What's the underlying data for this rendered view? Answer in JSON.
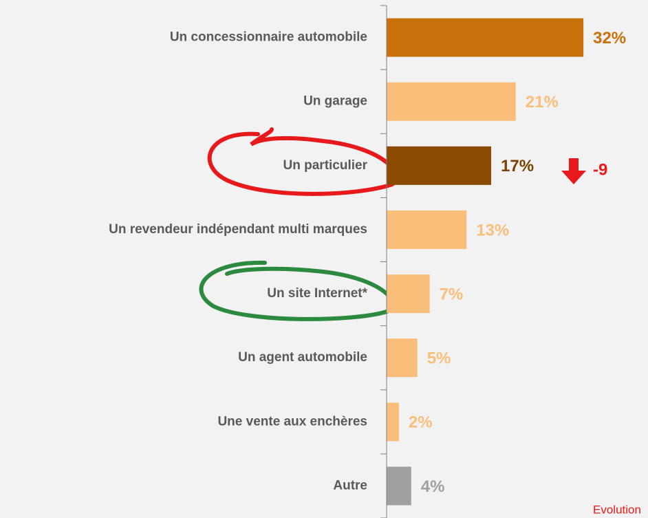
{
  "chart_data": {
    "type": "bar",
    "orientation": "horizontal",
    "categories": [
      "Un concessionnaire automobile",
      "Un garage",
      "Un particulier",
      "Un revendeur indépendant multi marques",
      "Un site Internet*",
      "Un agent automobile",
      "Une vente aux enchères",
      "Autre"
    ],
    "values": [
      32,
      21,
      17,
      13,
      7,
      5,
      2,
      4
    ],
    "value_labels": [
      "32%",
      "21%",
      "17%",
      "13%",
      "7%",
      "5%",
      "2%",
      "4%"
    ],
    "colors": [
      "#c8700a",
      "#f9bf7a",
      "#8a4b00",
      "#f9bf7a",
      "#f9bf7a",
      "#f9bf7a",
      "#f9bf7a",
      "#a0a0a0"
    ],
    "label_colors": [
      "#c8700a",
      "#f9bf7a",
      "#7a4200",
      "#f9bf7a",
      "#f9bf7a",
      "#f9bf7a",
      "#f9bf7a",
      "#a0a0a0"
    ],
    "xlim": [
      0,
      42.5
    ],
    "annotation": "-9",
    "footnote": "Evolution"
  }
}
